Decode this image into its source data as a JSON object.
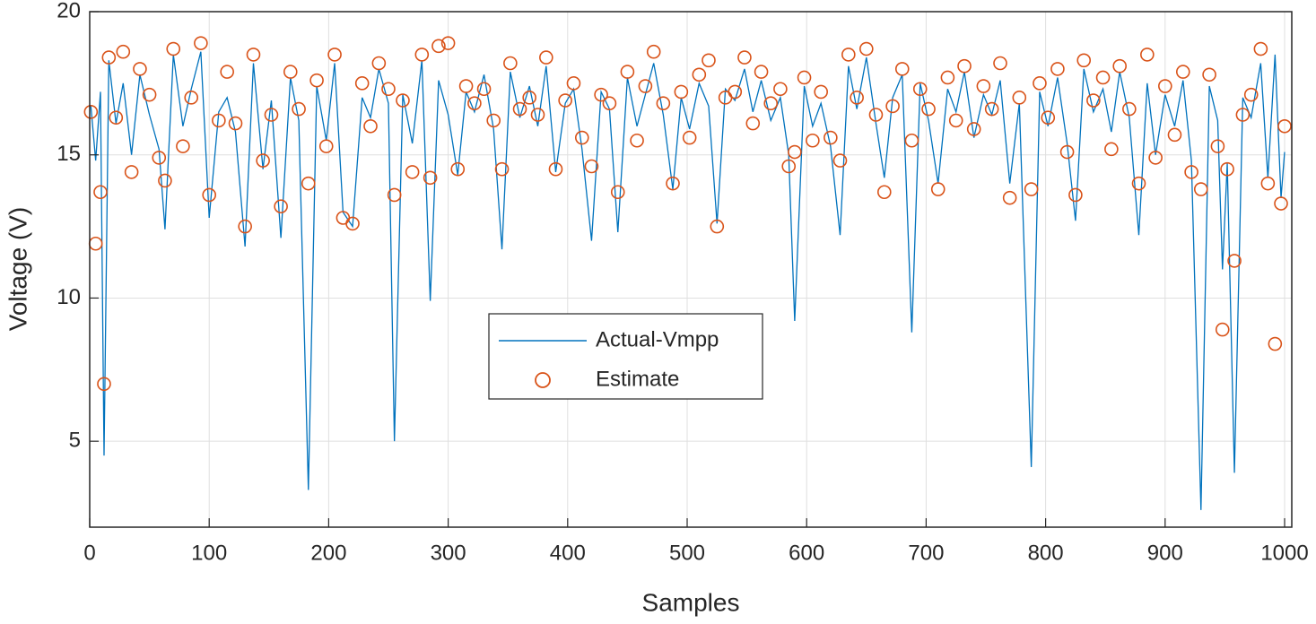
{
  "chart_data": {
    "type": "line",
    "xlabel": "Samples",
    "ylabel": "Voltage (V)",
    "x": [
      1,
      5,
      9,
      12,
      16,
      22,
      28,
      35,
      42,
      50,
      58,
      63,
      70,
      78,
      85,
      93,
      100,
      108,
      115,
      122,
      130,
      137,
      145,
      152,
      160,
      168,
      175,
      183,
      190,
      198,
      205,
      212,
      220,
      228,
      235,
      242,
      250,
      255,
      262,
      270,
      278,
      285,
      292,
      300,
      308,
      315,
      322,
      330,
      338,
      345,
      352,
      360,
      368,
      375,
      382,
      390,
      398,
      405,
      412,
      420,
      428,
      435,
      442,
      450,
      458,
      465,
      472,
      480,
      488,
      495,
      502,
      510,
      518,
      525,
      532,
      540,
      548,
      555,
      562,
      570,
      578,
      585,
      590,
      598,
      605,
      612,
      620,
      628,
      635,
      642,
      650,
      658,
      665,
      672,
      680,
      688,
      695,
      702,
      710,
      718,
      725,
      732,
      740,
      748,
      755,
      762,
      770,
      778,
      788,
      795,
      802,
      810,
      818,
      825,
      832,
      840,
      848,
      855,
      862,
      870,
      878,
      885,
      892,
      900,
      908,
      915,
      922,
      930,
      937,
      944,
      948,
      952,
      958,
      965,
      972,
      980,
      986,
      992,
      997,
      1000
    ],
    "series": [
      {
        "name": "Actual-Vmpp",
        "color": "#0072bd",
        "style": "line",
        "values": [
          16.7,
          14.8,
          17.2,
          4.5,
          18.3,
          16.1,
          17.5,
          15.0,
          17.8,
          16.4,
          15.2,
          12.4,
          18.5,
          16.0,
          17.3,
          18.6,
          12.8,
          16.5,
          17.0,
          15.8,
          11.8,
          18.2,
          14.5,
          16.9,
          12.1,
          17.7,
          16.2,
          3.3,
          17.4,
          15.5,
          18.2,
          13.0,
          12.5,
          17.0,
          16.3,
          18.0,
          16.8,
          5.0,
          17.1,
          15.4,
          18.3,
          9.9,
          17.6,
          16.4,
          14.3,
          17.2,
          16.5,
          17.8,
          15.9,
          11.7,
          17.9,
          16.3,
          17.4,
          16.0,
          18.1,
          14.4,
          16.8,
          17.3,
          15.2,
          12.0,
          17.2,
          16.6,
          12.3,
          17.7,
          16.0,
          17.1,
          18.2,
          16.4,
          13.8,
          17.0,
          15.9,
          17.5,
          16.7,
          12.6,
          17.3,
          16.9,
          18.0,
          16.5,
          17.6,
          16.2,
          17.0,
          15.0,
          9.2,
          17.4,
          16.0,
          16.8,
          15.3,
          12.2,
          18.1,
          16.6,
          18.4,
          16.1,
          14.2,
          17.0,
          17.8,
          8.8,
          17.5,
          16.2,
          14.0,
          17.3,
          16.5,
          17.9,
          15.6,
          17.1,
          16.4,
          17.6,
          14.0,
          16.8,
          4.1,
          17.2,
          16.0,
          17.7,
          15.4,
          12.7,
          18.0,
          16.5,
          17.3,
          15.8,
          17.9,
          16.3,
          12.2,
          17.5,
          15.0,
          17.1,
          16.0,
          17.6,
          14.8,
          2.6,
          17.4,
          16.2,
          11.0,
          14.7,
          3.9,
          17.0,
          16.3,
          18.2,
          14.2,
          18.5,
          13.5,
          15.1
        ]
      },
      {
        "name": "Estimate",
        "color": "#d95319",
        "style": "marker",
        "values": [
          16.5,
          11.9,
          13.7,
          7.0,
          18.4,
          16.3,
          18.6,
          14.4,
          18.0,
          17.1,
          14.9,
          14.1,
          18.7,
          15.3,
          17.0,
          18.9,
          13.6,
          16.2,
          17.9,
          16.1,
          12.5,
          18.5,
          14.8,
          16.4,
          13.2,
          17.9,
          16.6,
          14.0,
          17.6,
          15.3,
          18.5,
          12.8,
          12.6,
          17.5,
          16.0,
          18.2,
          17.3,
          13.6,
          16.9,
          14.4,
          18.5,
          14.2,
          18.8,
          18.9,
          14.5,
          17.4,
          16.8,
          17.3,
          16.2,
          14.5,
          18.2,
          16.6,
          17.0,
          16.4,
          18.4,
          14.5,
          16.9,
          17.5,
          15.6,
          14.6,
          17.1,
          16.8,
          13.7,
          17.9,
          15.5,
          17.4,
          18.6,
          16.8,
          14.0,
          17.2,
          15.6,
          17.8,
          18.3,
          12.5,
          17.0,
          17.2,
          18.4,
          16.1,
          17.9,
          16.8,
          17.3,
          14.6,
          15.1,
          17.7,
          15.5,
          17.2,
          15.6,
          14.8,
          18.5,
          17.0,
          18.7,
          16.4,
          13.7,
          16.7,
          18.0,
          15.5,
          17.3,
          16.6,
          13.8,
          17.7,
          16.2,
          18.1,
          15.9,
          17.4,
          16.6,
          18.2,
          13.5,
          17.0,
          13.8,
          17.5,
          16.3,
          18.0,
          15.1,
          13.6,
          18.3,
          16.9,
          17.7,
          15.2,
          18.1,
          16.6,
          14.0,
          18.5,
          14.9,
          17.4,
          15.7,
          17.9,
          14.4,
          13.8,
          17.8,
          15.3,
          8.9,
          14.5,
          11.3,
          16.4,
          17.1,
          18.7,
          14.0,
          8.4,
          13.3,
          16.0
        ]
      }
    ],
    "xlim": [
      0,
      1006
    ],
    "ylim": [
      2,
      20
    ],
    "xticks": [
      0,
      100,
      200,
      300,
      400,
      500,
      600,
      700,
      800,
      900,
      1000
    ],
    "yticks": [
      5,
      10,
      15,
      20
    ],
    "grid": true,
    "legend": "center"
  }
}
